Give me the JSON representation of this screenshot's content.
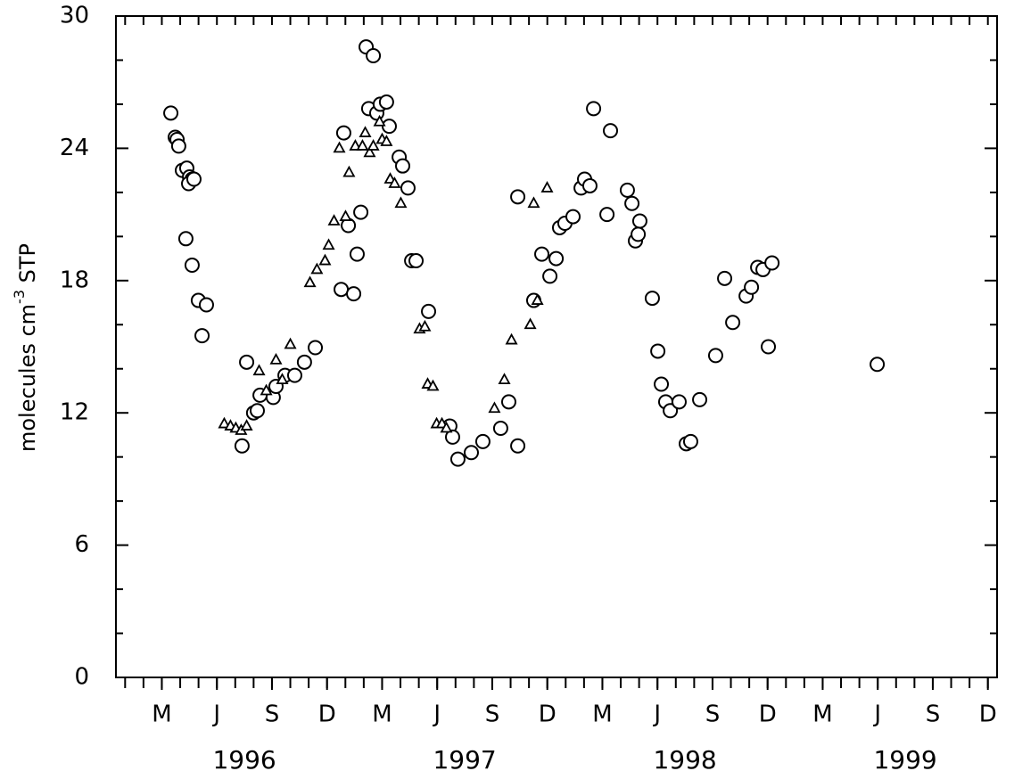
{
  "chart_data": {
    "type": "scatter",
    "ylabel": [
      "molecules cm",
      "-3",
      " STP"
    ],
    "xlim": [
      -0.5,
      47.5
    ],
    "ylim": [
      0,
      30
    ],
    "xticks": [
      {
        "value": 2,
        "label": "M"
      },
      {
        "value": 5,
        "label": "J"
      },
      {
        "value": 8,
        "label": "S"
      },
      {
        "value": 11,
        "label": "D"
      },
      {
        "value": 14,
        "label": "M"
      },
      {
        "value": 17,
        "label": "J"
      },
      {
        "value": 20,
        "label": "S"
      },
      {
        "value": 23,
        "label": "D"
      },
      {
        "value": 26,
        "label": "M"
      },
      {
        "value": 29,
        "label": "J"
      },
      {
        "value": 32,
        "label": "S"
      },
      {
        "value": 35,
        "label": "D"
      },
      {
        "value": 38,
        "label": "M"
      },
      {
        "value": 41,
        "label": "J"
      },
      {
        "value": 44,
        "label": "S"
      },
      {
        "value": 47,
        "label": "D"
      }
    ],
    "xminorticks": [
      0,
      1,
      2,
      3,
      4,
      5,
      6,
      7,
      8,
      9,
      10,
      11,
      12,
      13,
      14,
      15,
      16,
      17,
      18,
      19,
      20,
      21,
      22,
      23,
      24,
      25,
      26,
      27,
      28,
      29,
      30,
      31,
      32,
      33,
      34,
      35,
      36,
      37,
      38,
      39,
      40,
      41,
      42,
      43,
      44,
      45,
      46,
      47
    ],
    "year_labels": [
      {
        "value": 6.5,
        "label": "1996"
      },
      {
        "value": 18.5,
        "label": "1997"
      },
      {
        "value": 30.5,
        "label": "1998"
      },
      {
        "value": 42.5,
        "label": "1999"
      }
    ],
    "yticks": [
      0,
      6,
      12,
      18,
      24,
      30
    ],
    "yminorticks": [
      2,
      4,
      8,
      10,
      14,
      16,
      20,
      22,
      26,
      28
    ],
    "series": [
      {
        "marker": "circle",
        "color": "#000000",
        "x": [
          2.49,
          2.73,
          2.83,
          2.92,
          3.12,
          3.36,
          3.51,
          3.65,
          3.46,
          3.75,
          3.31,
          3.65,
          3.99,
          4.43,
          4.19,
          6.37,
          6.62,
          7.0,
          7.2,
          7.35,
          8.07,
          8.22,
          8.71,
          9.24,
          9.77,
          10.36,
          11.77,
          11.91,
          12.16,
          12.45,
          12.64,
          12.84,
          13.13,
          13.52,
          13.27,
          13.71,
          13.9,
          14.24,
          14.39,
          14.93,
          15.12,
          15.41,
          15.61,
          15.85,
          16.53,
          17.69,
          17.84,
          18.13,
          18.86,
          19.49,
          20.46,
          20.9,
          21.39,
          21.39,
          22.26,
          22.7,
          23.14,
          23.48,
          23.67,
          23.96,
          24.4,
          24.84,
          25.03,
          25.32,
          25.52,
          26.25,
          26.44,
          27.36,
          27.61,
          27.8,
          28.04,
          27.95,
          28.72,
          29.02,
          29.21,
          29.45,
          29.7,
          30.18,
          30.57,
          30.81,
          31.3,
          32.17,
          32.66,
          33.1,
          33.83,
          34.12,
          34.46,
          34.75,
          35.04,
          35.24,
          40.97
        ],
        "values": [
          25.6,
          24.5,
          24.4,
          24.1,
          23.0,
          23.1,
          22.7,
          22.6,
          22.4,
          22.6,
          19.9,
          18.7,
          17.1,
          16.9,
          15.5,
          10.5,
          14.3,
          12.0,
          12.1,
          12.8,
          12.7,
          13.2,
          13.7,
          13.7,
          14.3,
          14.96,
          17.6,
          24.7,
          20.5,
          17.4,
          19.2,
          21.1,
          28.6,
          28.2,
          25.8,
          25.6,
          26.0,
          26.1,
          25.0,
          23.6,
          23.2,
          22.2,
          18.9,
          18.9,
          16.6,
          11.4,
          10.9,
          9.9,
          10.2,
          10.7,
          11.3,
          12.5,
          10.5,
          21.8,
          17.1,
          19.2,
          18.2,
          19.0,
          20.4,
          20.6,
          20.9,
          22.2,
          22.6,
          22.3,
          25.8,
          21.0,
          24.8,
          22.1,
          21.5,
          19.8,
          20.7,
          20.1,
          17.2,
          14.8,
          13.3,
          12.5,
          12.1,
          12.5,
          10.6,
          10.7,
          12.6,
          14.6,
          18.1,
          16.1,
          17.3,
          17.7,
          18.6,
          18.5,
          15.0,
          18.8,
          14.2
        ]
      },
      {
        "marker": "triangle",
        "color": "#000000",
        "x": [
          5.4,
          5.74,
          6.03,
          6.32,
          6.62,
          7.3,
          7.69,
          8.22,
          8.56,
          9.0,
          10.07,
          10.45,
          10.89,
          11.09,
          11.38,
          11.67,
          12.01,
          12.2,
          12.54,
          12.93,
          13.08,
          13.32,
          13.52,
          13.86,
          14.0,
          14.24,
          14.44,
          14.68,
          15.02,
          16.04,
          16.33,
          16.48,
          16.77,
          16.97,
          17.26,
          17.5,
          20.12,
          20.66,
          21.05,
          22.07,
          22.46,
          22.26,
          22.99
        ],
        "values": [
          11.5,
          11.4,
          11.3,
          11.2,
          11.4,
          13.9,
          13.0,
          14.4,
          13.5,
          15.1,
          17.9,
          18.5,
          18.9,
          19.6,
          20.7,
          24.0,
          20.9,
          22.9,
          24.1,
          24.1,
          24.7,
          23.8,
          24.1,
          25.2,
          24.4,
          24.3,
          22.6,
          22.4,
          21.5,
          15.8,
          15.9,
          13.3,
          13.2,
          11.5,
          11.5,
          11.3,
          12.2,
          13.5,
          15.3,
          16.0,
          17.1,
          21.5,
          22.2
        ]
      }
    ]
  }
}
